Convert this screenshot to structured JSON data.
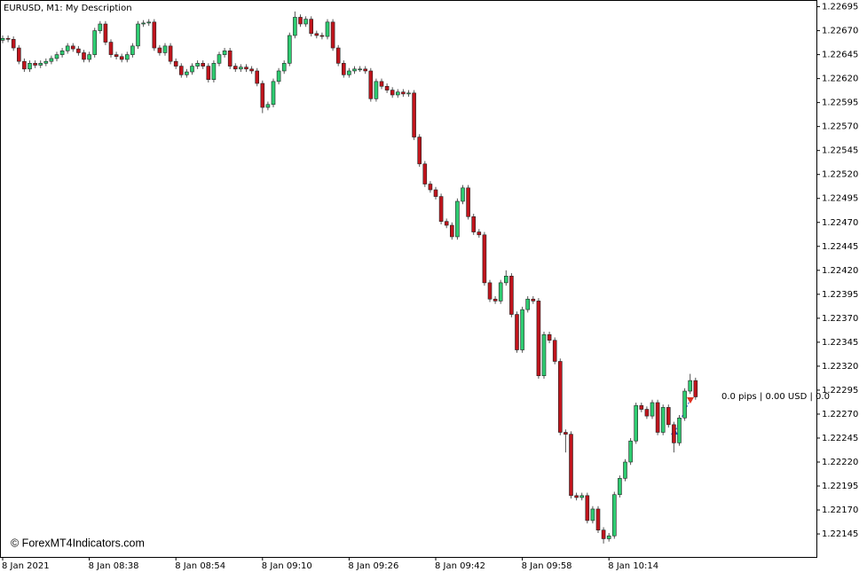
{
  "chart_data": {
    "type": "candlestick",
    "title": "EURUSD, M1:  My Description",
    "watermark": "© ForexMT4Indicators.com",
    "annotation": "0.0 pips | 0.00 USD | 0.0",
    "up_color": "#2ecc71",
    "down_color": "#c0141c",
    "categories": [
      "8 Jan 2021",
      null,
      null,
      null,
      null,
      null,
      null,
      null,
      null,
      null,
      null,
      null,
      null,
      null,
      null,
      null,
      "8 Jan 08:38",
      null,
      null,
      null,
      null,
      null,
      null,
      null,
      null,
      null,
      null,
      null,
      null,
      null,
      null,
      null,
      "8 Jan 08:54",
      null,
      null,
      null,
      null,
      null,
      null,
      null,
      null,
      null,
      null,
      null,
      null,
      null,
      null,
      null,
      "8 Jan 09:10",
      null,
      null,
      null,
      null,
      null,
      null,
      null,
      null,
      null,
      null,
      null,
      null,
      null,
      null,
      null,
      "8 Jan 09:26",
      null,
      null,
      null,
      null,
      null,
      null,
      null,
      null,
      null,
      null,
      null,
      null,
      null,
      null,
      null,
      "8 Jan 09:42",
      null,
      null,
      null,
      null,
      null,
      null,
      null,
      null,
      null,
      null,
      null,
      null,
      null,
      null,
      null,
      "8 Jan 09:58",
      null,
      null,
      null,
      null,
      null,
      null,
      null,
      null,
      null,
      null,
      null,
      null,
      null,
      null,
      null,
      "8 Jan 10:14",
      null,
      null,
      null,
      null,
      null,
      null,
      null,
      null,
      null,
      null,
      null,
      null,
      null,
      null,
      null,
      null
    ],
    "open": [
      1.2266,
      1.22662,
      1.22661,
      1.22652,
      1.22638,
      1.2263,
      1.22636,
      1.22634,
      1.22636,
      1.22638,
      1.22641,
      1.22645,
      1.22649,
      1.22654,
      1.22651,
      1.22647,
      1.2264,
      1.22645,
      1.2267,
      1.22677,
      1.22658,
      1.22645,
      1.22643,
      1.2264,
      1.22645,
      1.22654,
      1.22677,
      1.22678,
      1.22679,
      1.22652,
      1.22647,
      1.22654,
      1.22638,
      1.22633,
      1.22624,
      1.22627,
      1.22633,
      1.22636,
      1.22633,
      1.22619,
      1.22636,
      1.22645,
      1.22649,
      1.22633,
      1.2263,
      1.22632,
      1.2263,
      1.22628,
      1.22615,
      1.2259,
      1.22593,
      1.22617,
      1.22628,
      1.22636,
      1.22665,
      1.22684,
      1.22677,
      1.22682,
      1.22667,
      1.22665,
      1.22664,
      1.22679,
      1.22652,
      1.22636,
      1.22624,
      1.22628,
      1.2263,
      1.2263,
      1.22628,
      1.22599,
      1.22617,
      1.22612,
      1.22608,
      1.22603,
      1.22606,
      1.22604,
      1.22605,
      1.22559,
      1.22531,
      1.2251,
      1.22504,
      1.22497,
      1.22471,
      1.22467,
      1.22455,
      1.22492,
      1.22506,
      1.22476,
      1.2246,
      1.22457,
      1.22407,
      1.2239,
      1.22388,
      1.22407,
      1.22414,
      1.22374,
      1.22337,
      1.22379,
      1.2239,
      1.22388,
      1.2231,
      1.22353,
      1.22347,
      1.22325,
      1.22251,
      1.22249,
      1.22185,
      1.22183,
      1.22185,
      1.22159,
      1.22171,
      1.22149,
      1.2214,
      1.22143,
      1.22186,
      1.22203,
      1.2222,
      1.22242,
      1.22279,
      1.22275,
      1.22268,
      1.22282,
      1.22251,
      1.22277,
      1.22259,
      1.2224,
      1.22266,
      1.22294,
      1.22305
    ],
    "high": [
      1.22665,
      1.22665,
      1.22664,
      1.22655,
      1.22641,
      1.22639,
      1.22639,
      1.22639,
      1.22641,
      1.22644,
      1.22648,
      1.22652,
      1.22657,
      1.22657,
      1.22654,
      1.2265,
      1.22648,
      1.22673,
      1.2268,
      1.2268,
      1.22661,
      1.22648,
      1.22646,
      1.22648,
      1.22657,
      1.2268,
      1.22681,
      1.22682,
      1.22682,
      1.22655,
      1.22657,
      1.22657,
      1.22641,
      1.22636,
      1.2263,
      1.22636,
      1.22639,
      1.22639,
      1.22636,
      1.22639,
      1.22648,
      1.22652,
      1.22652,
      1.22636,
      1.22635,
      1.22635,
      1.22633,
      1.22631,
      1.22618,
      1.22596,
      1.2262,
      1.22631,
      1.22639,
      1.22668,
      1.2269,
      1.22687,
      1.22685,
      1.22685,
      1.2267,
      1.22668,
      1.22682,
      1.22682,
      1.22655,
      1.22639,
      1.22631,
      1.22633,
      1.22633,
      1.22633,
      1.22631,
      1.2262,
      1.2262,
      1.22615,
      1.22611,
      1.22609,
      1.22609,
      1.22608,
      1.22608,
      1.22562,
      1.22534,
      1.22513,
      1.22507,
      1.225,
      1.22474,
      1.2247,
      1.22495,
      1.22509,
      1.22509,
      1.22479,
      1.22463,
      1.2246,
      1.2241,
      1.22393,
      1.2241,
      1.2242,
      1.22417,
      1.22377,
      1.22382,
      1.22393,
      1.22393,
      1.22391,
      1.22356,
      1.22356,
      1.2235,
      1.22328,
      1.22254,
      1.22252,
      1.22188,
      1.22188,
      1.22188,
      1.22174,
      1.22174,
      1.22152,
      1.22146,
      1.22189,
      1.22206,
      1.22223,
      1.22245,
      1.22282,
      1.22282,
      1.22278,
      1.22285,
      1.22285,
      1.2228,
      1.2228,
      1.22262,
      1.22269,
      1.22297,
      1.22312,
      1.22308
    ],
    "low": [
      1.22657,
      1.22658,
      1.22649,
      1.22635,
      1.22627,
      1.22627,
      1.22631,
      1.22631,
      1.22633,
      1.22635,
      1.22638,
      1.22642,
      1.22646,
      1.22648,
      1.22644,
      1.22637,
      1.22637,
      1.22642,
      1.22667,
      1.22655,
      1.22642,
      1.2264,
      1.22637,
      1.22637,
      1.22642,
      1.22651,
      1.22674,
      1.22675,
      1.22649,
      1.22644,
      1.22644,
      1.22635,
      1.2263,
      1.22621,
      1.22621,
      1.22624,
      1.2263,
      1.2263,
      1.22616,
      1.22616,
      1.22633,
      1.22642,
      1.2263,
      1.22627,
      1.22627,
      1.22627,
      1.22625,
      1.22612,
      1.22584,
      1.22587,
      1.2259,
      1.22614,
      1.22625,
      1.22633,
      1.22662,
      1.22674,
      1.22674,
      1.22664,
      1.22662,
      1.22661,
      1.22661,
      1.22649,
      1.22633,
      1.22621,
      1.22621,
      1.22625,
      1.22627,
      1.22625,
      1.22596,
      1.22596,
      1.22609,
      1.22605,
      1.226,
      1.226,
      1.22601,
      1.22601,
      1.22556,
      1.22528,
      1.22507,
      1.22501,
      1.22494,
      1.22468,
      1.22464,
      1.22452,
      1.22452,
      1.22489,
      1.22473,
      1.22457,
      1.22454,
      1.22404,
      1.22387,
      1.22385,
      1.22385,
      1.22404,
      1.22371,
      1.22334,
      1.22334,
      1.22376,
      1.22385,
      1.22307,
      1.22307,
      1.22344,
      1.22322,
      1.22248,
      1.2223,
      1.22182,
      1.2218,
      1.2218,
      1.22156,
      1.22156,
      1.22146,
      1.22135,
      1.22137,
      1.2214,
      1.22183,
      1.222,
      1.22217,
      1.22239,
      1.22272,
      1.22265,
      1.22265,
      1.22248,
      1.22248,
      1.22256,
      1.2223,
      1.22237,
      1.22263,
      1.22291,
      1.22285
    ],
    "close": [
      1.22662,
      1.22661,
      1.22652,
      1.22638,
      1.2263,
      1.22636,
      1.22634,
      1.22636,
      1.22638,
      1.22641,
      1.22645,
      1.22649,
      1.22654,
      1.22651,
      1.22647,
      1.2264,
      1.22645,
      1.2267,
      1.22677,
      1.22658,
      1.22645,
      1.22643,
      1.2264,
      1.22645,
      1.22654,
      1.22677,
      1.22678,
      1.22679,
      1.22652,
      1.22647,
      1.22654,
      1.22638,
      1.22633,
      1.22624,
      1.22627,
      1.22633,
      1.22636,
      1.22633,
      1.22619,
      1.22636,
      1.22645,
      1.22649,
      1.22633,
      1.2263,
      1.22632,
      1.2263,
      1.22628,
      1.22615,
      1.2259,
      1.22593,
      1.22617,
      1.22628,
      1.22636,
      1.22665,
      1.22684,
      1.22677,
      1.22682,
      1.22667,
      1.22665,
      1.22664,
      1.22679,
      1.22652,
      1.22636,
      1.22624,
      1.22628,
      1.2263,
      1.2263,
      1.22628,
      1.22599,
      1.22617,
      1.22612,
      1.22608,
      1.22603,
      1.22606,
      1.22604,
      1.22605,
      1.22559,
      1.22531,
      1.2251,
      1.22504,
      1.22497,
      1.22471,
      1.22467,
      1.22455,
      1.22492,
      1.22506,
      1.22476,
      1.2246,
      1.22457,
      1.22407,
      1.2239,
      1.22388,
      1.22407,
      1.22414,
      1.22374,
      1.22337,
      1.22379,
      1.2239,
      1.22388,
      1.2231,
      1.22353,
      1.22347,
      1.22325,
      1.22251,
      1.22249,
      1.22185,
      1.22183,
      1.22185,
      1.22159,
      1.22171,
      1.22149,
      1.2214,
      1.22143,
      1.22186,
      1.22203,
      1.2222,
      1.22242,
      1.22279,
      1.22275,
      1.22268,
      1.22282,
      1.22251,
      1.22277,
      1.22259,
      1.2224,
      1.22266,
      1.22294,
      1.22305,
      1.22288
    ],
    "ylim": [
      1.22121,
      1.22702
    ],
    "yticks": [
      1.22695,
      {
        "value": 1.2267,
        "label": "1.22670"
      },
      1.22645,
      {
        "value": 1.2262,
        "label": "1.22620"
      },
      1.22595,
      {
        "value": 1.2257,
        "label": "1.22570"
      },
      1.22545,
      {
        "value": 1.2252,
        "label": "1.22520"
      },
      1.22495,
      {
        "value": 1.2247,
        "label": "1.22470"
      },
      1.22445,
      {
        "value": 1.2242,
        "label": "1.22420"
      },
      1.22395,
      {
        "value": 1.2237,
        "label": "1.22370"
      },
      1.22345,
      {
        "value": 1.2232,
        "label": "1.22320"
      },
      1.22295,
      {
        "value": 1.2227,
        "label": "1.22270"
      },
      1.22245,
      {
        "value": 1.2222,
        "label": "1.22220"
      },
      1.22195,
      {
        "value": 1.2217,
        "label": "1.22170"
      },
      1.22145
    ],
    "grid": false
  }
}
